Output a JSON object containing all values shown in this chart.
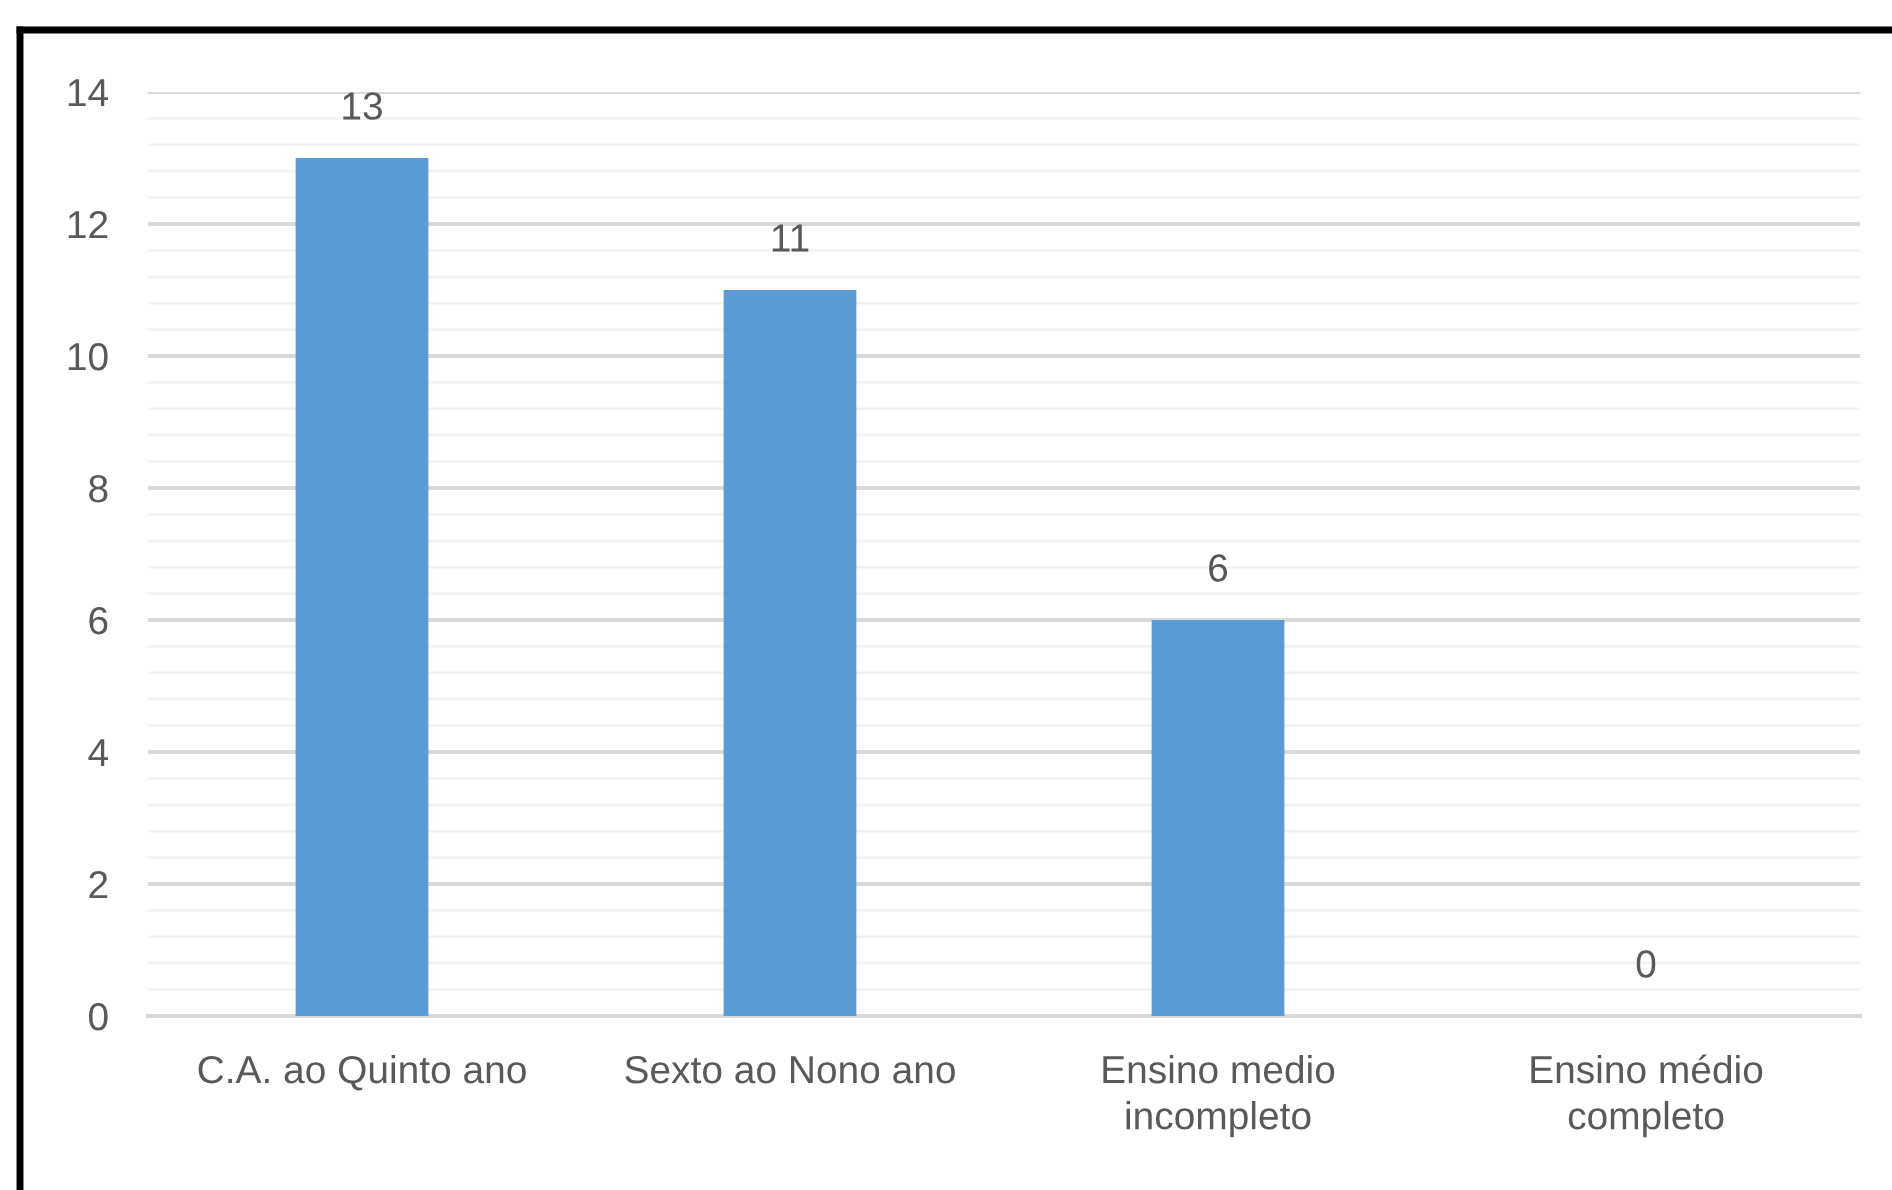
{
  "chart_data": {
    "type": "bar",
    "categories": [
      "C.A. ao Quinto ano",
      "Sexto ao Nono ano",
      "Ensino medio incompleto",
      "Ensino médio completo"
    ],
    "values": [
      13,
      11,
      6,
      0
    ],
    "color": "#5b9bd5",
    "ylim": [
      0,
      14
    ],
    "yticks": [
      0,
      {
        "value": 0.4,
        "label": null
      },
      {
        "value": 0.8,
        "label": null
      },
      {
        "value": 1.2,
        "label": null
      },
      {
        "value": 1.6,
        "label": null
      },
      2,
      {
        "value": 2.4,
        "label": null
      },
      {
        "value": 2.8,
        "label": null
      },
      {
        "value": 3.2,
        "label": null
      },
      {
        "value": 3.6,
        "label": null
      },
      4,
      {
        "value": 4.4,
        "label": null
      },
      {
        "value": 4.8,
        "label": null
      },
      {
        "value": 5.2,
        "label": null
      },
      {
        "value": 5.6,
        "label": null
      },
      6,
      {
        "value": 6.4,
        "label": null
      },
      {
        "value": 6.8,
        "label": null
      },
      {
        "value": 7.2,
        "label": null
      },
      {
        "value": 7.6,
        "label": null
      },
      8,
      {
        "value": 8.4,
        "label": null
      },
      {
        "value": 8.8,
        "label": null
      },
      {
        "value": 9.2,
        "label": null
      },
      {
        "value": 9.6,
        "label": null
      },
      10,
      {
        "value": 10.4,
        "label": null
      },
      {
        "value": 10.8,
        "label": null
      },
      {
        "value": 11.2,
        "label": null
      },
      {
        "value": 11.6,
        "label": null
      },
      12,
      {
        "value": 12.4,
        "label": null
      },
      {
        "value": 12.8,
        "label": null
      },
      {
        "value": 13.2,
        "label": null
      },
      {
        "value": 13.6,
        "label": null
      },
      14
    ],
    "grid": "y",
    "data_labels": true
  }
}
